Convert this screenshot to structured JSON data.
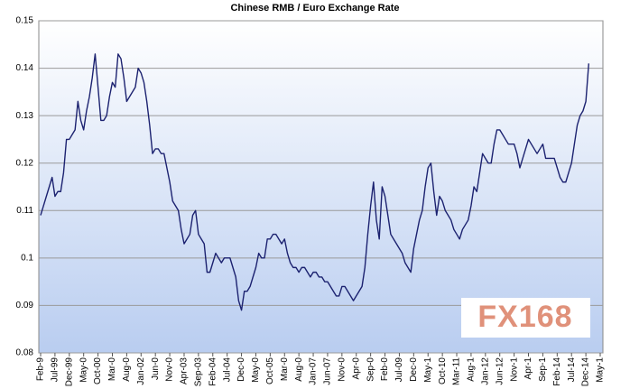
{
  "chart_data": {
    "type": "line",
    "title": "Chinese RMB / Euro Exchange Rate",
    "watermark": "FX168",
    "categories": [
      "Feb-9",
      null,
      null,
      null,
      null,
      "Jul-99",
      null,
      null,
      null,
      null,
      "Dec-99",
      null,
      null,
      null,
      null,
      "May-0",
      null,
      null,
      null,
      null,
      "Oct-00",
      null,
      null,
      null,
      null,
      "Mar-0",
      null,
      null,
      null,
      null,
      "Aug-0",
      null,
      null,
      null,
      null,
      "Jan-02",
      null,
      null,
      null,
      null,
      "Jun-0",
      null,
      null,
      null,
      null,
      "Nov-0",
      null,
      null,
      null,
      null,
      "Apr-03",
      null,
      null,
      null,
      null,
      "Sep-03",
      null,
      null,
      null,
      null,
      "Feb-04",
      null,
      null,
      null,
      null,
      "Jul-04",
      null,
      null,
      null,
      null,
      "Dec-0",
      null,
      null,
      null,
      null,
      "May-0",
      null,
      null,
      null,
      null,
      "Oct-05",
      null,
      null,
      null,
      null,
      "Mar-0",
      null,
      null,
      null,
      null,
      "Aug-0",
      null,
      null,
      null,
      null,
      "Jan-07",
      null,
      null,
      null,
      null,
      "Jun-07",
      null,
      null,
      null,
      null,
      "Nov-0",
      null,
      null,
      null,
      null,
      "Apr-0",
      null,
      null,
      null,
      null,
      "Sep-0",
      null,
      null,
      null,
      null,
      "Feb-0",
      null,
      null,
      null,
      null,
      "Jul-09",
      null,
      null,
      null,
      null,
      "Dec-0",
      null,
      null,
      null,
      null,
      "May-1",
      null,
      null,
      null,
      null,
      "Oct-10",
      null,
      null,
      null,
      null,
      "Mar-11",
      null,
      null,
      null,
      null,
      "Aug-1",
      null,
      null,
      null,
      null,
      "Jan-12",
      null,
      null,
      null,
      null,
      "Jun-12",
      null,
      null,
      null,
      null,
      "Nov-1",
      null,
      null,
      null,
      null,
      "Apr-1",
      null,
      null,
      null,
      null,
      "Sep-1",
      null,
      null,
      null,
      null,
      "Feb-14",
      null,
      null,
      null,
      null,
      "Jul-14",
      null,
      null,
      null,
      null,
      "Dec-14",
      null,
      null,
      null,
      null,
      "May-1"
    ],
    "series": [
      {
        "name": "RMB / Euro",
        "color": "#1c2270",
        "values": [
          0.109,
          0.111,
          0.113,
          0.115,
          0.117,
          0.113,
          0.114,
          0.114,
          0.118,
          0.125,
          0.125,
          0.126,
          0.127,
          0.133,
          0.129,
          0.127,
          0.131,
          0.134,
          0.138,
          0.143,
          0.136,
          0.129,
          0.129,
          0.13,
          0.134,
          0.137,
          0.136,
          0.143,
          0.142,
          0.138,
          0.133,
          0.134,
          0.135,
          0.136,
          0.14,
          0.139,
          0.137,
          0.133,
          0.128,
          0.122,
          0.123,
          0.123,
          0.122,
          0.122,
          0.119,
          0.116,
          0.112,
          0.111,
          0.11,
          0.106,
          0.103,
          0.104,
          0.105,
          0.109,
          0.11,
          0.105,
          0.104,
          0.103,
          0.097,
          0.097,
          0.099,
          0.101,
          0.1,
          0.099,
          0.1,
          0.1,
          0.1,
          0.098,
          0.096,
          0.091,
          0.089,
          0.093,
          0.093,
          0.094,
          0.096,
          0.098,
          0.101,
          0.1,
          0.1,
          0.104,
          0.104,
          0.105,
          0.105,
          0.104,
          0.103,
          0.104,
          0.101,
          0.099,
          0.098,
          0.098,
          0.097,
          0.098,
          0.098,
          0.097,
          0.096,
          0.097,
          0.097,
          0.096,
          0.096,
          0.095,
          0.095,
          0.094,
          0.093,
          0.092,
          0.092,
          0.094,
          0.094,
          0.093,
          0.092,
          0.091,
          0.092,
          0.093,
          0.094,
          0.098,
          0.105,
          0.111,
          0.116,
          0.108,
          0.104,
          0.115,
          0.113,
          0.109,
          0.105,
          0.104,
          0.103,
          0.102,
          0.101,
          0.099,
          0.098,
          0.097,
          0.102,
          0.105,
          0.108,
          0.11,
          0.115,
          0.119,
          0.12,
          0.114,
          0.109,
          0.113,
          0.112,
          0.11,
          0.109,
          0.108,
          0.106,
          0.105,
          0.104,
          0.106,
          0.107,
          0.108,
          0.111,
          0.115,
          0.114,
          0.118,
          0.122,
          0.121,
          0.12,
          0.12,
          0.124,
          0.127,
          0.127,
          0.126,
          0.125,
          0.124,
          0.124,
          0.124,
          0.122,
          0.119,
          0.121,
          0.123,
          0.125,
          0.124,
          0.123,
          0.122,
          0.123,
          0.124,
          0.121,
          0.121,
          0.121,
          0.121,
          0.119,
          0.117,
          0.116,
          0.116,
          0.118,
          0.12,
          0.124,
          0.128,
          0.13,
          0.131,
          0.133,
          0.141,
          null,
          null,
          null,
          null
        ]
      }
    ],
    "ylim": [
      0.08,
      0.15
    ],
    "yticks": [
      0.08,
      0.09,
      0.1,
      0.11,
      0.12,
      0.13,
      0.14,
      0.15
    ],
    "grid": true
  }
}
